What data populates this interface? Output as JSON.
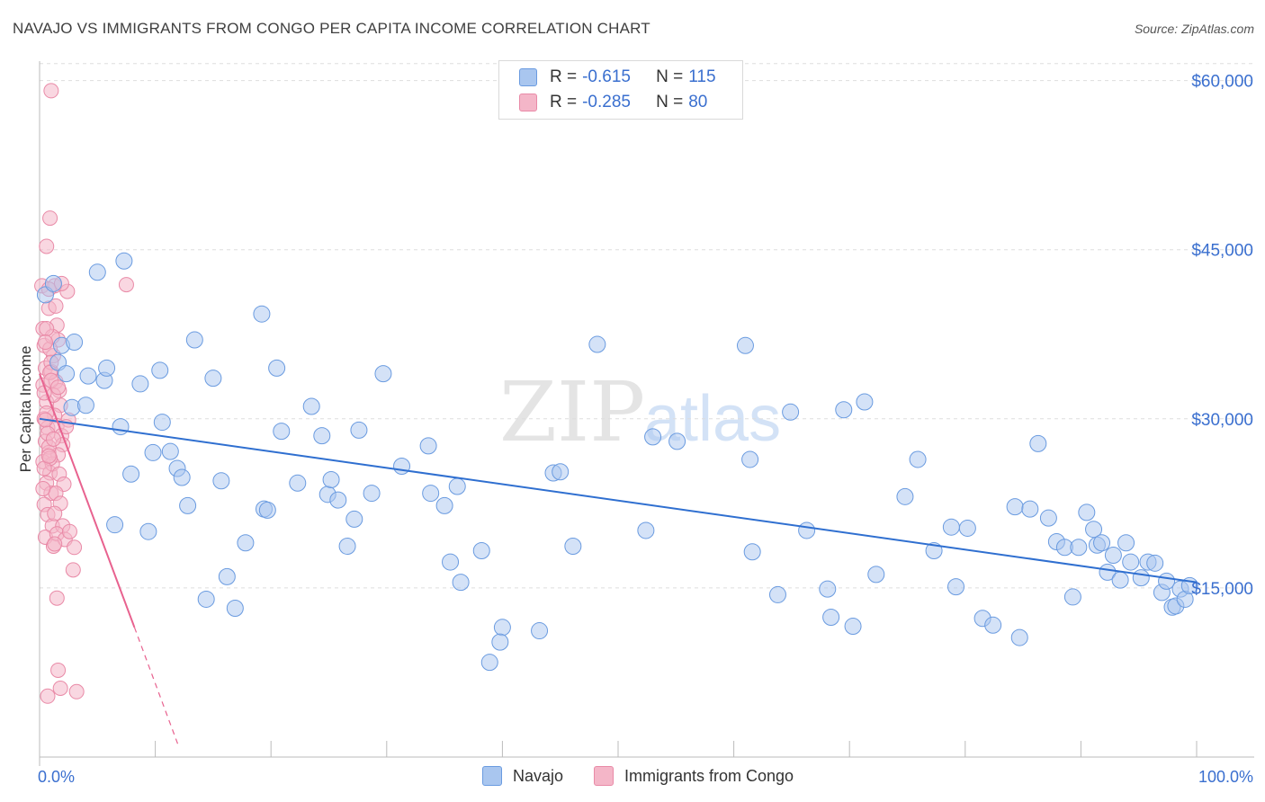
{
  "title": "NAVAJO VS IMMIGRANTS FROM CONGO PER CAPITA INCOME CORRELATION CHART",
  "source": "Source: ZipAtlas.com",
  "watermark": {
    "zip": "ZIP",
    "atlas": "atlas"
  },
  "legend": {
    "rows": [
      {
        "r_label": "R =",
        "r_value": "-0.615",
        "n_label": "N =",
        "n_value": "115",
        "color": "#a9c6ef"
      },
      {
        "r_label": "R =",
        "r_value": "-0.285",
        "n_label": "N =",
        "n_value": "80",
        "color": "#f4b6c8"
      }
    ]
  },
  "bottom_legend": {
    "navajo": "Navajo",
    "congo": "Immigrants from Congo"
  },
  "colors": {
    "navajo_fill": "#a9c6ef",
    "navajo_stroke": "#6a9be0",
    "navajo_line": "#2f6fd0",
    "congo_fill": "#f4b6c8",
    "congo_stroke": "#e98aa7",
    "congo_line": "#e8628f",
    "axis_label": "#3a6fcf",
    "grid": "#dddddd"
  },
  "chart_data": {
    "type": "scatter",
    "title": "NAVAJO VS IMMIGRANTS FROM CONGO PER CAPITA INCOME CORRELATION CHART",
    "xlabel": "",
    "ylabel": "Per Capita Income",
    "xlim": [
      0,
      100
    ],
    "ylim": [
      0,
      63000
    ],
    "x_tick_labels": [
      "0.0%",
      "100.0%"
    ],
    "y_ticks": [
      15000,
      30000,
      45000,
      60000
    ],
    "y_tick_labels": [
      "$15,000",
      "$30,000",
      "$45,000",
      "$60,000"
    ],
    "grid": true,
    "legend_position": "top-center",
    "series": [
      {
        "name": "Navajo",
        "R": -0.615,
        "N": 115,
        "trend": {
          "x": [
            0,
            100
          ],
          "y": [
            30000,
            15500
          ]
        },
        "points": [
          [
            0.5,
            41000
          ],
          [
            1.2,
            42000
          ],
          [
            1.6,
            35000
          ],
          [
            2.3,
            34000
          ],
          [
            1.9,
            36500
          ],
          [
            3.0,
            36800
          ],
          [
            2.8,
            31000
          ],
          [
            4.2,
            33800
          ],
          [
            4.0,
            31200
          ],
          [
            5.0,
            43000
          ],
          [
            5.6,
            33400
          ],
          [
            5.8,
            34500
          ],
          [
            7.3,
            44000
          ],
          [
            6.5,
            20600
          ],
          [
            7.0,
            29300
          ],
          [
            7.9,
            25100
          ],
          [
            8.7,
            33100
          ],
          [
            9.4,
            20000
          ],
          [
            9.8,
            27000
          ],
          [
            10.4,
            34300
          ],
          [
            10.6,
            29700
          ],
          [
            11.3,
            27100
          ],
          [
            11.9,
            25600
          ],
          [
            12.3,
            24800
          ],
          [
            12.8,
            22300
          ],
          [
            13.4,
            37000
          ],
          [
            14.4,
            14000
          ],
          [
            15.0,
            33600
          ],
          [
            15.7,
            24500
          ],
          [
            16.2,
            16000
          ],
          [
            16.9,
            13200
          ],
          [
            17.8,
            19000
          ],
          [
            19.2,
            39300
          ],
          [
            19.4,
            22000
          ],
          [
            19.7,
            21900
          ],
          [
            20.5,
            34500
          ],
          [
            20.9,
            28900
          ],
          [
            22.3,
            24300
          ],
          [
            23.5,
            31100
          ],
          [
            24.4,
            28500
          ],
          [
            24.9,
            23300
          ],
          [
            25.2,
            24600
          ],
          [
            25.8,
            22800
          ],
          [
            26.6,
            18700
          ],
          [
            27.2,
            21100
          ],
          [
            27.6,
            29000
          ],
          [
            28.7,
            23400
          ],
          [
            29.7,
            34000
          ],
          [
            31.3,
            25800
          ],
          [
            33.6,
            27600
          ],
          [
            33.8,
            23400
          ],
          [
            35.0,
            22300
          ],
          [
            35.5,
            17300
          ],
          [
            36.1,
            24000
          ],
          [
            36.4,
            15500
          ],
          [
            38.2,
            18300
          ],
          [
            38.9,
            8400
          ],
          [
            40.0,
            11500
          ],
          [
            39.8,
            10200
          ],
          [
            43.2,
            11200
          ],
          [
            44.4,
            25200
          ],
          [
            45.0,
            25300
          ],
          [
            46.1,
            18700
          ],
          [
            48.2,
            36600
          ],
          [
            52.4,
            20100
          ],
          [
            53.0,
            28400
          ],
          [
            55.1,
            28000
          ],
          [
            61.0,
            36500
          ],
          [
            61.4,
            26400
          ],
          [
            61.6,
            18200
          ],
          [
            63.8,
            14400
          ],
          [
            64.9,
            30600
          ],
          [
            66.3,
            20100
          ],
          [
            68.1,
            14900
          ],
          [
            68.4,
            12400
          ],
          [
            69.5,
            30800
          ],
          [
            70.3,
            11600
          ],
          [
            71.3,
            31500
          ],
          [
            72.3,
            16200
          ],
          [
            74.8,
            23100
          ],
          [
            75.9,
            26400
          ],
          [
            77.3,
            18300
          ],
          [
            78.8,
            20400
          ],
          [
            79.2,
            15100
          ],
          [
            80.2,
            20300
          ],
          [
            81.5,
            12300
          ],
          [
            82.4,
            11700
          ],
          [
            84.3,
            22200
          ],
          [
            84.7,
            10600
          ],
          [
            85.6,
            22000
          ],
          [
            86.3,
            27800
          ],
          [
            87.2,
            21200
          ],
          [
            87.9,
            19100
          ],
          [
            88.6,
            18600
          ],
          [
            89.3,
            14200
          ],
          [
            89.8,
            18600
          ],
          [
            90.5,
            21700
          ],
          [
            91.1,
            20200
          ],
          [
            91.4,
            18800
          ],
          [
            91.8,
            19000
          ],
          [
            92.3,
            16400
          ],
          [
            92.8,
            17900
          ],
          [
            93.4,
            15700
          ],
          [
            93.9,
            19000
          ],
          [
            94.3,
            17300
          ],
          [
            95.2,
            15900
          ],
          [
            95.8,
            17300
          ],
          [
            96.4,
            17200
          ],
          [
            97.0,
            14600
          ],
          [
            97.4,
            15600
          ],
          [
            97.9,
            13300
          ],
          [
            98.2,
            13400
          ],
          [
            98.6,
            14900
          ],
          [
            99.0,
            14000
          ],
          [
            99.4,
            15200
          ]
        ]
      },
      {
        "name": "Immigrants from Congo",
        "R": -0.285,
        "N": 80,
        "trend": {
          "x": [
            0,
            8.2
          ],
          "y": [
            34000,
            11500
          ],
          "dashed_extension": {
            "x": [
              8.2,
              12.0
            ],
            "y": [
              11500,
              1000
            ]
          }
        },
        "points": [
          [
            0.2,
            41800
          ],
          [
            0.3,
            38000
          ],
          [
            0.4,
            36500
          ],
          [
            0.5,
            34500
          ],
          [
            0.3,
            33000
          ],
          [
            0.6,
            31500
          ],
          [
            0.4,
            30000
          ],
          [
            0.7,
            29200
          ],
          [
            0.5,
            28000
          ],
          [
            0.8,
            27000
          ],
          [
            0.3,
            26200
          ],
          [
            0.9,
            25200
          ],
          [
            0.6,
            24300
          ],
          [
            1.0,
            23400
          ],
          [
            0.4,
            22400
          ],
          [
            0.7,
            21500
          ],
          [
            1.1,
            20500
          ],
          [
            0.5,
            19500
          ],
          [
            1.2,
            18700
          ],
          [
            0.8,
            39800
          ],
          [
            0.6,
            45300
          ],
          [
            0.9,
            47800
          ],
          [
            1.0,
            59100
          ],
          [
            1.3,
            41800
          ],
          [
            1.4,
            40000
          ],
          [
            1.5,
            38300
          ],
          [
            1.6,
            37000
          ],
          [
            1.2,
            35600
          ],
          [
            1.0,
            34200
          ],
          [
            1.4,
            33300
          ],
          [
            1.7,
            32500
          ],
          [
            1.8,
            31200
          ],
          [
            1.3,
            30300
          ],
          [
            1.5,
            29400
          ],
          [
            1.9,
            28500
          ],
          [
            2.0,
            27700
          ],
          [
            1.6,
            26800
          ],
          [
            1.1,
            26000
          ],
          [
            1.7,
            25100
          ],
          [
            2.1,
            24200
          ],
          [
            1.4,
            23400
          ],
          [
            1.8,
            22500
          ],
          [
            1.3,
            21600
          ],
          [
            2.0,
            20500
          ],
          [
            1.5,
            19800
          ],
          [
            2.2,
            19300
          ],
          [
            2.4,
            41300
          ],
          [
            0.8,
            41500
          ],
          [
            0.9,
            36200
          ],
          [
            1.0,
            35000
          ],
          [
            1.2,
            32100
          ],
          [
            0.6,
            30500
          ],
          [
            0.5,
            29900
          ],
          [
            0.7,
            28700
          ],
          [
            0.8,
            27500
          ],
          [
            0.9,
            26500
          ],
          [
            0.4,
            25600
          ],
          [
            0.3,
            23800
          ],
          [
            1.3,
            18900
          ],
          [
            1.5,
            14100
          ],
          [
            1.6,
            7700
          ],
          [
            1.8,
            6100
          ],
          [
            0.7,
            5400
          ],
          [
            3.2,
            5800
          ],
          [
            3.0,
            18600
          ],
          [
            2.9,
            16600
          ],
          [
            2.6,
            20000
          ],
          [
            1.1,
            37300
          ],
          [
            0.6,
            38000
          ],
          [
            0.5,
            36800
          ],
          [
            0.9,
            34100
          ],
          [
            1.0,
            33400
          ],
          [
            0.4,
            32300
          ],
          [
            1.9,
            42000
          ],
          [
            7.5,
            41900
          ],
          [
            2.5,
            29900
          ],
          [
            2.3,
            29300
          ],
          [
            1.6,
            32800
          ],
          [
            1.2,
            28200
          ],
          [
            0.8,
            26700
          ]
        ]
      }
    ]
  }
}
